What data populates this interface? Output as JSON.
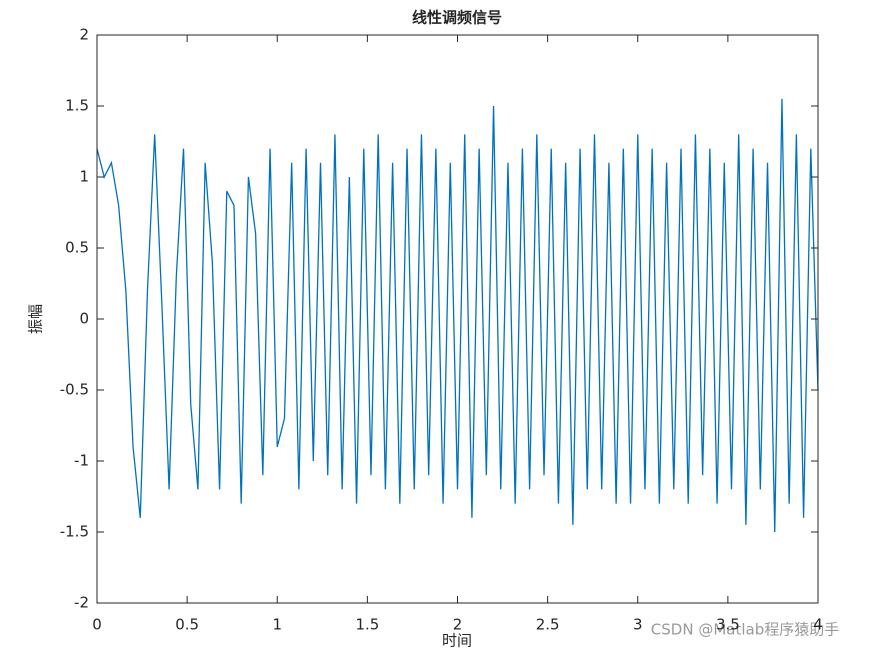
{
  "chart_data": {
    "type": "line",
    "title": "线性调频信号",
    "y_label": "振幅",
    "x_label": "时间",
    "watermark": "CSDN @Matlab程序猿助手",
    "xlim": [
      0,
      4
    ],
    "ylim": [
      -2,
      2
    ],
    "xticks": [
      0,
      0.5,
      1,
      1.5,
      2,
      2.5,
      3,
      3.5,
      4
    ],
    "yticks": [
      -2,
      -1.5,
      -1,
      -0.5,
      0,
      0.5,
      1,
      1.5,
      2
    ],
    "grid": false,
    "series": [
      {
        "color": "#0072bd",
        "x": [
          0,
          0.04,
          0.08,
          0.12,
          0.16,
          0.2,
          0.24,
          0.28,
          0.32,
          0.36,
          0.4,
          0.44,
          0.48,
          0.52,
          0.56,
          0.6,
          0.64,
          0.68,
          0.72,
          0.76,
          0.8,
          0.84,
          0.88,
          0.92,
          0.96,
          1.0,
          1.04,
          1.08,
          1.12,
          1.16,
          1.2,
          1.24,
          1.28,
          1.32,
          1.36,
          1.4,
          1.44,
          1.48,
          1.52,
          1.56,
          1.6,
          1.64,
          1.68,
          1.72,
          1.76,
          1.8,
          1.84,
          1.88,
          1.92,
          1.96,
          2.0,
          2.04,
          2.08,
          2.12,
          2.16,
          2.2,
          2.24,
          2.28,
          2.32,
          2.36,
          2.4,
          2.44,
          2.48,
          2.52,
          2.56,
          2.6,
          2.64,
          2.68,
          2.72,
          2.76,
          2.8,
          2.84,
          2.88,
          2.92,
          2.96,
          3.0,
          3.04,
          3.08,
          3.12,
          3.16,
          3.2,
          3.24,
          3.28,
          3.32,
          3.36,
          3.4,
          3.44,
          3.48,
          3.52,
          3.56,
          3.6,
          3.64,
          3.68,
          3.72,
          3.76,
          3.8,
          3.84,
          3.88,
          3.92,
          3.96,
          4.0
        ],
        "values": [
          1.2,
          1.0,
          1.1,
          0.8,
          0.2,
          -0.9,
          -1.4,
          0.2,
          1.3,
          0.1,
          -1.2,
          0.3,
          1.2,
          -0.6,
          -1.2,
          1.1,
          0.4,
          -1.2,
          0.9,
          0.8,
          -1.3,
          1.0,
          0.6,
          -1.1,
          1.2,
          -0.9,
          -0.7,
          1.1,
          -1.2,
          1.2,
          -1.0,
          1.1,
          -1.1,
          1.3,
          -1.2,
          1.0,
          -1.3,
          1.2,
          -1.1,
          1.3,
          -1.2,
          1.1,
          -1.3,
          1.2,
          -1.2,
          1.3,
          -1.1,
          1.2,
          -1.3,
          1.1,
          -1.2,
          1.3,
          -1.4,
          1.2,
          -1.1,
          1.5,
          -1.2,
          1.1,
          -1.3,
          1.2,
          -1.2,
          1.3,
          -1.1,
          1.2,
          -1.3,
          1.1,
          -1.45,
          1.2,
          -1.2,
          1.3,
          -1.2,
          1.1,
          -1.3,
          1.2,
          -1.3,
          1.3,
          -1.2,
          1.2,
          -1.3,
          1.1,
          -1.2,
          1.2,
          -1.3,
          1.3,
          -1.1,
          1.2,
          -1.3,
          1.1,
          -1.2,
          1.3,
          -1.45,
          1.2,
          -1.2,
          1.1,
          -1.5,
          1.55,
          -1.3,
          1.3,
          -1.4,
          1.2,
          -0.5
        ]
      }
    ]
  }
}
